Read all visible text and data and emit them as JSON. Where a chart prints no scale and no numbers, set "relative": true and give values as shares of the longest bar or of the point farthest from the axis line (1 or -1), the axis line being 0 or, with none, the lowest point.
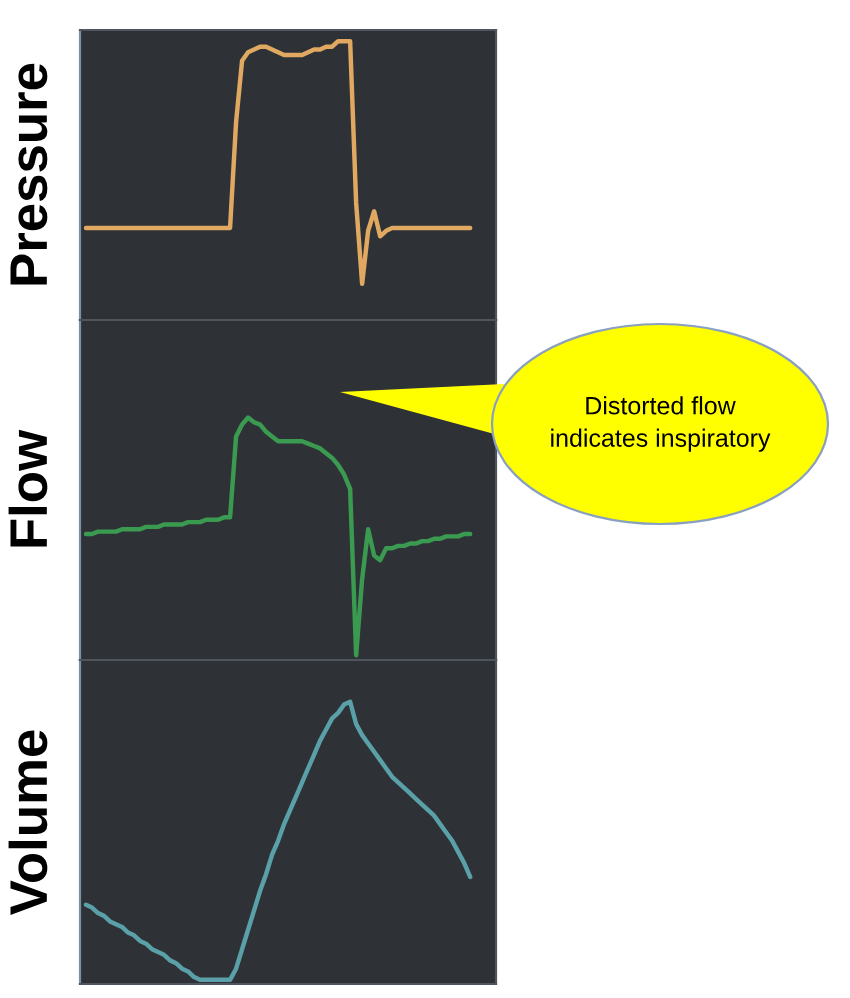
{
  "chart_data": [
    {
      "type": "line",
      "ylabel": "Pressure",
      "relative": true,
      "categories": [
        null,
        null,
        null,
        null,
        null,
        null,
        null,
        null,
        null,
        null,
        null,
        null,
        null,
        null,
        null,
        null,
        null,
        null,
        null,
        null,
        null,
        null,
        null,
        null,
        null,
        null,
        null,
        null,
        null,
        null,
        null,
        null,
        null,
        null,
        null,
        null,
        null,
        null,
        null,
        null,
        null,
        null,
        null,
        null,
        null,
        null,
        null,
        null,
        null,
        null,
        null,
        null,
        null,
        null,
        null,
        null,
        null,
        null,
        null,
        null,
        null,
        null,
        null,
        null,
        null
      ],
      "series": [
        {
          "color": "#e0a860",
          "values": [
            0.33,
            0.33,
            0.33,
            0.33,
            0.33,
            0.33,
            0.33,
            0.33,
            0.33,
            0.33,
            0.33,
            0.33,
            0.33,
            0.33,
            0.33,
            0.33,
            0.33,
            0.33,
            0.33,
            0.33,
            0.33,
            0.33,
            0.33,
            0.33,
            0.33,
            0.71,
            0.93,
            0.96,
            0.97,
            0.98,
            0.98,
            0.97,
            0.96,
            0.95,
            0.95,
            0.95,
            0.95,
            0.96,
            0.97,
            0.97,
            0.98,
            0.98,
            1.0,
            1.0,
            1.0,
            0.42,
            0.13,
            0.32,
            0.39,
            0.3,
            0.32,
            0.33,
            0.33,
            0.33,
            0.33,
            0.33,
            0.33,
            0.33,
            0.33,
            0.33,
            0.33,
            0.33,
            0.33,
            0.33,
            0.33
          ]
        }
      ]
    },
    {
      "type": "line",
      "ylabel": "Flow",
      "relative": true,
      "annotations": [
        "Distorted flow indicates inspiratory"
      ],
      "categories": [
        null,
        null,
        null,
        null,
        null,
        null,
        null,
        null,
        null,
        null,
        null,
        null,
        null,
        null,
        null,
        null,
        null,
        null,
        null,
        null,
        null,
        null,
        null,
        null,
        null,
        null,
        null,
        null,
        null,
        null,
        null,
        null,
        null,
        null,
        null,
        null,
        null,
        null,
        null,
        null,
        null,
        null,
        null,
        null,
        null,
        null,
        null,
        null,
        null,
        null,
        null,
        null,
        null,
        null,
        null,
        null,
        null,
        null,
        null,
        null,
        null,
        null,
        null,
        null,
        null
      ],
      "series": [
        {
          "color": "#3a9a50",
          "values": [
            0.51,
            0.51,
            0.52,
            0.52,
            0.52,
            0.52,
            0.53,
            0.53,
            0.53,
            0.53,
            0.54,
            0.54,
            0.54,
            0.55,
            0.55,
            0.55,
            0.55,
            0.56,
            0.56,
            0.56,
            0.57,
            0.57,
            0.57,
            0.58,
            0.58,
            0.92,
            0.97,
            1.0,
            0.98,
            0.97,
            0.94,
            0.92,
            0.9,
            0.9,
            0.9,
            0.9,
            0.9,
            0.89,
            0.88,
            0.87,
            0.85,
            0.83,
            0.8,
            0.76,
            0.7,
            0.0,
            0.32,
            0.53,
            0.42,
            0.4,
            0.45,
            0.45,
            0.46,
            0.46,
            0.47,
            0.47,
            0.48,
            0.48,
            0.49,
            0.49,
            0.5,
            0.5,
            0.5,
            0.51,
            0.51
          ]
        }
      ]
    },
    {
      "type": "line",
      "ylabel": "Volume",
      "relative": true,
      "categories": [
        null,
        null,
        null,
        null,
        null,
        null,
        null,
        null,
        null,
        null,
        null,
        null,
        null,
        null,
        null,
        null,
        null,
        null,
        null,
        null,
        null,
        null,
        null,
        null,
        null,
        null,
        null,
        null,
        null,
        null,
        null,
        null,
        null,
        null,
        null,
        null,
        null,
        null,
        null,
        null,
        null,
        null,
        null,
        null,
        null,
        null,
        null,
        null,
        null,
        null,
        null,
        null,
        null,
        null,
        null,
        null,
        null,
        null,
        null,
        null,
        null,
        null,
        null,
        null,
        null
      ],
      "series": [
        {
          "color": "#5aa0a8",
          "values": [
            0.27,
            0.26,
            0.24,
            0.23,
            0.21,
            0.2,
            0.19,
            0.17,
            0.16,
            0.14,
            0.13,
            0.11,
            0.1,
            0.09,
            0.07,
            0.06,
            0.04,
            0.03,
            0.01,
            0.0,
            0.0,
            0.0,
            0.0,
            0.0,
            0.0,
            0.04,
            0.11,
            0.18,
            0.25,
            0.32,
            0.38,
            0.45,
            0.5,
            0.56,
            0.61,
            0.66,
            0.71,
            0.76,
            0.81,
            0.86,
            0.9,
            0.94,
            0.96,
            0.99,
            1.0,
            0.92,
            0.88,
            0.85,
            0.82,
            0.79,
            0.76,
            0.73,
            0.71,
            0.69,
            0.67,
            0.65,
            0.63,
            0.61,
            0.59,
            0.56,
            0.53,
            0.5,
            0.46,
            0.42,
            0.37
          ]
        }
      ]
    }
  ]
}
